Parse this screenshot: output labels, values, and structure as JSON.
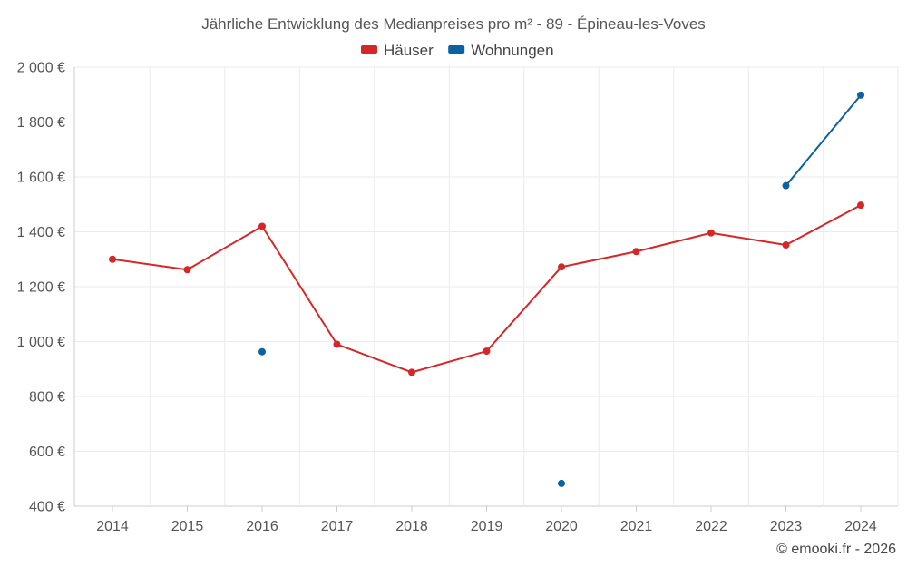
{
  "chart_data": {
    "type": "line",
    "title": "Jährliche Entwicklung des Medianpreises pro m² - 89 - Épineau-les-Voves",
    "xlabel": "",
    "ylabel": "",
    "categories": [
      "2014",
      "2015",
      "2016",
      "2017",
      "2018",
      "2019",
      "2020",
      "2021",
      "2022",
      "2023",
      "2024"
    ],
    "ylim": [
      400,
      2000
    ],
    "yticks": [
      400,
      600,
      800,
      1000,
      1200,
      1400,
      1600,
      1800,
      2000
    ],
    "ytick_labels": [
      "400 €",
      "600 €",
      "800 €",
      "1 000 €",
      "1 200 €",
      "1 400 €",
      "1 600 €",
      "1 800 €",
      "2 000 €"
    ],
    "grid": true,
    "legend_position": "top-center",
    "series": [
      {
        "name": "Häuser",
        "color": "#d62728",
        "values": [
          1300,
          1262,
          1420,
          990,
          888,
          965,
          1272,
          1328,
          1396,
          1352,
          1497
        ]
      },
      {
        "name": "Wohnungen",
        "color": "#0a63a0",
        "values": [
          null,
          null,
          963,
          null,
          null,
          null,
          483,
          null,
          null,
          1568,
          1898
        ]
      }
    ]
  },
  "credit": "© emooki.fr - 2026"
}
